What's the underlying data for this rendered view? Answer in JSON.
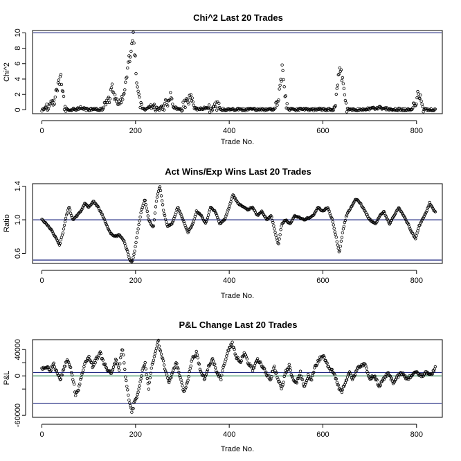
{
  "chart_data": [
    {
      "type": "scatter",
      "title": "Chi^2 Last 20 Trades",
      "xlabel": "Trade No.",
      "ylabel": "Chi^2",
      "xlim": [
        -20,
        855
      ],
      "ylim": [
        -0.5,
        10.3
      ],
      "xticks": [
        0,
        200,
        400,
        600,
        800
      ],
      "yticks": [
        0,
        2,
        4,
        6,
        8,
        10
      ],
      "ytick_labels": [
        "0",
        "2",
        "4",
        "6",
        "8",
        "10"
      ],
      "hlines": [
        {
          "y": 10.0,
          "color": "#1a237e"
        }
      ],
      "point_color": "#000000",
      "keys": [
        [
          0,
          0
        ],
        [
          10,
          0.3
        ],
        [
          20,
          0.7
        ],
        [
          28,
          1.5
        ],
        [
          35,
          3.0
        ],
        [
          40,
          4.2
        ],
        [
          44,
          2.5
        ],
        [
          48,
          0.5
        ],
        [
          55,
          0.05
        ],
        [
          75,
          0.1
        ],
        [
          85,
          0.3
        ],
        [
          95,
          0.05
        ],
        [
          130,
          0.05
        ],
        [
          138,
          0.8
        ],
        [
          145,
          1.6
        ],
        [
          150,
          2.8
        ],
        [
          155,
          1.4
        ],
        [
          165,
          1.2
        ],
        [
          172,
          1.5
        ],
        [
          180,
          3.5
        ],
        [
          186,
          6.5
        ],
        [
          190,
          7.6
        ],
        [
          195,
          9.9
        ],
        [
          200,
          6.0
        ],
        [
          204,
          2.5
        ],
        [
          210,
          0.6
        ],
        [
          216,
          0.05
        ],
        [
          240,
          0.5
        ],
        [
          250,
          0.05
        ],
        [
          265,
          0.8
        ],
        [
          275,
          1.8
        ],
        [
          283,
          0.3
        ],
        [
          292,
          0.05
        ],
        [
          305,
          0.6
        ],
        [
          318,
          1.5
        ],
        [
          325,
          0.3
        ],
        [
          332,
          0.05
        ],
        [
          375,
          0.5
        ],
        [
          385,
          0.05
        ],
        [
          495,
          0.05
        ],
        [
          505,
          1.5
        ],
        [
          510,
          3.4
        ],
        [
          513,
          5.3
        ],
        [
          517,
          3.5
        ],
        [
          522,
          0.4
        ],
        [
          530,
          0.05
        ],
        [
          590,
          0.05
        ],
        [
          620,
          0.05
        ],
        [
          627,
          1.0
        ],
        [
          632,
          3.5
        ],
        [
          637,
          5.5
        ],
        [
          643,
          3.5
        ],
        [
          648,
          1.2
        ],
        [
          652,
          0.05
        ],
        [
          685,
          0.05
        ],
        [
          700,
          0.1
        ],
        [
          720,
          0.3
        ],
        [
          745,
          0.05
        ],
        [
          790,
          0.05
        ],
        [
          798,
          1.0
        ],
        [
          804,
          2.3
        ],
        [
          810,
          1.0
        ],
        [
          816,
          0.1
        ],
        [
          840,
          0.05
        ]
      ]
    },
    {
      "type": "scatter",
      "title": "Act Wins/Exp Wins Last 20 Trades",
      "xlabel": "Trade No.",
      "ylabel": "Ratio",
      "xlim": [
        -20,
        855
      ],
      "ylim": [
        0.48,
        1.43
      ],
      "xticks": [
        0,
        200,
        400,
        600,
        800
      ],
      "yticks": [
        0.6,
        1.0,
        1.4
      ],
      "ytick_labels": [
        "0.6",
        "1.0",
        "1.4"
      ],
      "hlines": [
        {
          "y": 1.0,
          "color": "#1a237e"
        },
        {
          "y": 0.52,
          "color": "#1a237e"
        }
      ],
      "point_color": "#000000",
      "keys": [
        [
          0,
          1.0
        ],
        [
          10,
          0.95
        ],
        [
          20,
          0.88
        ],
        [
          30,
          0.78
        ],
        [
          38,
          0.7
        ],
        [
          45,
          0.85
        ],
        [
          52,
          1.05
        ],
        [
          58,
          1.15
        ],
        [
          66,
          1.0
        ],
        [
          75,
          1.05
        ],
        [
          85,
          1.12
        ],
        [
          92,
          1.2
        ],
        [
          100,
          1.15
        ],
        [
          110,
          1.22
        ],
        [
          120,
          1.15
        ],
        [
          130,
          1.05
        ],
        [
          137,
          0.95
        ],
        [
          145,
          0.85
        ],
        [
          155,
          0.8
        ],
        [
          165,
          0.82
        ],
        [
          175,
          0.75
        ],
        [
          183,
          0.62
        ],
        [
          188,
          0.52
        ],
        [
          193,
          0.5
        ],
        [
          198,
          0.62
        ],
        [
          204,
          0.85
        ],
        [
          212,
          1.1
        ],
        [
          220,
          1.25
        ],
        [
          228,
          1.0
        ],
        [
          238,
          0.9
        ],
        [
          245,
          1.25
        ],
        [
          252,
          1.4
        ],
        [
          260,
          1.1
        ],
        [
          268,
          0.92
        ],
        [
          278,
          0.95
        ],
        [
          290,
          1.15
        ],
        [
          298,
          1.05
        ],
        [
          305,
          0.95
        ],
        [
          312,
          0.85
        ],
        [
          322,
          0.95
        ],
        [
          330,
          1.1
        ],
        [
          340,
          1.05
        ],
        [
          350,
          0.95
        ],
        [
          360,
          1.15
        ],
        [
          370,
          1.1
        ],
        [
          380,
          0.95
        ],
        [
          390,
          1.0
        ],
        [
          400,
          1.15
        ],
        [
          408,
          1.3
        ],
        [
          418,
          1.2
        ],
        [
          430,
          1.15
        ],
        [
          440,
          1.12
        ],
        [
          450,
          1.15
        ],
        [
          460,
          1.05
        ],
        [
          470,
          1.1
        ],
        [
          480,
          1.0
        ],
        [
          490,
          1.05
        ],
        [
          498,
          0.85
        ],
        [
          505,
          0.7
        ],
        [
          512,
          0.95
        ],
        [
          520,
          1.0
        ],
        [
          530,
          0.95
        ],
        [
          540,
          1.05
        ],
        [
          560,
          1.0
        ],
        [
          580,
          1.05
        ],
        [
          590,
          1.15
        ],
        [
          600,
          1.1
        ],
        [
          610,
          1.15
        ],
        [
          620,
          1.0
        ],
        [
          628,
          0.8
        ],
        [
          635,
          0.6
        ],
        [
          642,
          0.85
        ],
        [
          650,
          1.05
        ],
        [
          660,
          1.15
        ],
        [
          670,
          1.25
        ],
        [
          680,
          1.2
        ],
        [
          690,
          1.1
        ],
        [
          700,
          1.0
        ],
        [
          712,
          0.95
        ],
        [
          722,
          1.05
        ],
        [
          730,
          1.1
        ],
        [
          742,
          0.95
        ],
        [
          752,
          1.05
        ],
        [
          762,
          1.15
        ],
        [
          772,
          1.05
        ],
        [
          782,
          0.95
        ],
        [
          790,
          0.85
        ],
        [
          798,
          0.78
        ],
        [
          805,
          0.92
        ],
        [
          812,
          1.0
        ],
        [
          820,
          1.08
        ],
        [
          828,
          1.2
        ],
        [
          838,
          1.1
        ]
      ]
    },
    {
      "type": "scatter",
      "title": "P&L Change Last 20 Trades",
      "xlabel": "Trade No.",
      "ylabel": "P&L",
      "xlim": [
        -20,
        855
      ],
      "ylim": [
        -63000,
        55000
      ],
      "xticks": [
        0,
        200,
        400,
        600,
        800
      ],
      "yticks": [
        -60000,
        -20000,
        0,
        20000,
        40000
      ],
      "ytick_labels": [
        "-60000",
        "",
        "0",
        "",
        "40000"
      ],
      "hlines": [
        {
          "y": 0,
          "color": "#2e8b57"
        },
        {
          "y": 5000,
          "color": "#1a237e"
        },
        {
          "y": -42000,
          "color": "#1a237e"
        }
      ],
      "point_color": "#000000",
      "keys": [
        [
          0,
          10000
        ],
        [
          10,
          15000
        ],
        [
          18,
          8000
        ],
        [
          25,
          20000
        ],
        [
          32,
          5000
        ],
        [
          40,
          -5000
        ],
        [
          48,
          15000
        ],
        [
          55,
          25000
        ],
        [
          62,
          10000
        ],
        [
          68,
          -10000
        ],
        [
          72,
          -30000
        ],
        [
          78,
          -20000
        ],
        [
          85,
          0
        ],
        [
          92,
          20000
        ],
        [
          100,
          30000
        ],
        [
          108,
          15000
        ],
        [
          116,
          25000
        ],
        [
          124,
          35000
        ],
        [
          132,
          20000
        ],
        [
          140,
          10000
        ],
        [
          148,
          5000
        ],
        [
          158,
          25000
        ],
        [
          165,
          10000
        ],
        [
          172,
          45000
        ],
        [
          178,
          0
        ],
        [
          184,
          -25000
        ],
        [
          188,
          -45000
        ],
        [
          192,
          -55000
        ],
        [
          197,
          -42000
        ],
        [
          204,
          -30000
        ],
        [
          212,
          0
        ],
        [
          220,
          20000
        ],
        [
          228,
          -20000
        ],
        [
          235,
          15000
        ],
        [
          242,
          35000
        ],
        [
          248,
          55000
        ],
        [
          256,
          30000
        ],
        [
          265,
          5000
        ],
        [
          272,
          -10000
        ],
        [
          280,
          10000
        ],
        [
          288,
          20000
        ],
        [
          296,
          -5000
        ],
        [
          304,
          -25000
        ],
        [
          312,
          -5000
        ],
        [
          320,
          25000
        ],
        [
          330,
          35000
        ],
        [
          340,
          5000
        ],
        [
          348,
          -5000
        ],
        [
          356,
          15000
        ],
        [
          365,
          25000
        ],
        [
          374,
          5000
        ],
        [
          382,
          -5000
        ],
        [
          390,
          20000
        ],
        [
          398,
          40000
        ],
        [
          406,
          50000
        ],
        [
          414,
          30000
        ],
        [
          424,
          20000
        ],
        [
          432,
          35000
        ],
        [
          440,
          20000
        ],
        [
          450,
          10000
        ],
        [
          460,
          25000
        ],
        [
          470,
          15000
        ],
        [
          478,
          5000
        ],
        [
          488,
          -5000
        ],
        [
          496,
          15000
        ],
        [
          504,
          -5000
        ],
        [
          512,
          -20000
        ],
        [
          520,
          5000
        ],
        [
          528,
          15000
        ],
        [
          536,
          -5000
        ],
        [
          544,
          -10000
        ],
        [
          552,
          5000
        ],
        [
          560,
          -15000
        ],
        [
          568,
          0
        ],
        [
          576,
          -5000
        ],
        [
          584,
          15000
        ],
        [
          592,
          25000
        ],
        [
          600,
          30000
        ],
        [
          608,
          20000
        ],
        [
          616,
          10000
        ],
        [
          624,
          5000
        ],
        [
          632,
          -15000
        ],
        [
          640,
          -25000
        ],
        [
          648,
          -10000
        ],
        [
          656,
          5000
        ],
        [
          664,
          -5000
        ],
        [
          672,
          10000
        ],
        [
          680,
          15000
        ],
        [
          690,
          20000
        ],
        [
          700,
          -5000
        ],
        [
          710,
          0
        ],
        [
          720,
          -15000
        ],
        [
          730,
          -5000
        ],
        [
          740,
          5000
        ],
        [
          750,
          -10000
        ],
        [
          760,
          0
        ],
        [
          770,
          5000
        ],
        [
          780,
          -5000
        ],
        [
          790,
          0
        ],
        [
          800,
          5000
        ],
        [
          810,
          0
        ],
        [
          820,
          5000
        ],
        [
          830,
          0
        ],
        [
          840,
          12000
        ]
      ]
    }
  ]
}
